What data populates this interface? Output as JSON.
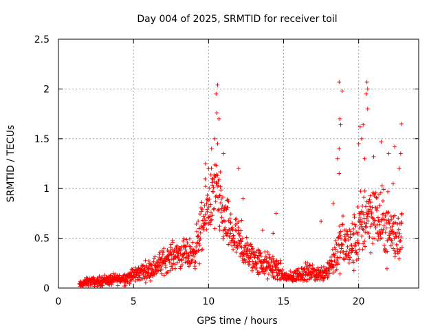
{
  "chart_data": {
    "type": "scatter",
    "title": "Day 004 of 2025, SRMTID for receiver toil",
    "xlabel": "GPS time / hours",
    "ylabel": "SRMTID / TECUs",
    "xlim": [
      0,
      24
    ],
    "ylim": [
      0,
      2.5
    ],
    "xticks": [
      "0",
      "5",
      "10",
      "15",
      "20"
    ],
    "xtick_values": [
      0,
      5,
      10,
      15,
      20
    ],
    "yticks": [
      "0",
      "0.5",
      "1",
      "1.5",
      "2",
      "2.5"
    ],
    "ytick_values": [
      0,
      0.5,
      1,
      1.5,
      2,
      2.5
    ],
    "grid": true,
    "marker": "+",
    "color": "#ff0000",
    "series": [
      {
        "name": "SRMTID",
        "envelope_note": "approximate trend of the point cloud read from the chart",
        "x": [
          1.4,
          2.0,
          2.5,
          3.0,
          3.5,
          4.0,
          4.5,
          5.0,
          5.5,
          6.0,
          6.5,
          7.0,
          7.5,
          8.0,
          8.5,
          9.0,
          9.5,
          10.0,
          10.5,
          11.0,
          11.5,
          12.0,
          12.5,
          13.0,
          13.5,
          14.0,
          14.5,
          15.0,
          15.5,
          16.0,
          16.5,
          17.0,
          17.5,
          18.0,
          18.5,
          19.0,
          19.5,
          20.0,
          20.5,
          21.0,
          21.5,
          22.0,
          22.5,
          22.9
        ],
        "y": [
          0.03,
          0.07,
          0.06,
          0.08,
          0.08,
          0.09,
          0.1,
          0.13,
          0.16,
          0.18,
          0.22,
          0.27,
          0.32,
          0.35,
          0.33,
          0.35,
          0.55,
          0.85,
          0.95,
          0.7,
          0.55,
          0.45,
          0.35,
          0.3,
          0.25,
          0.22,
          0.2,
          0.12,
          0.1,
          0.14,
          0.16,
          0.15,
          0.14,
          0.2,
          0.35,
          0.45,
          0.4,
          0.55,
          0.75,
          0.75,
          0.65,
          0.6,
          0.5,
          0.6
        ],
        "spread": [
          0.03,
          0.04,
          0.04,
          0.05,
          0.05,
          0.05,
          0.06,
          0.07,
          0.08,
          0.09,
          0.1,
          0.12,
          0.12,
          0.13,
          0.13,
          0.15,
          0.25,
          0.3,
          0.35,
          0.25,
          0.22,
          0.2,
          0.15,
          0.14,
          0.13,
          0.12,
          0.12,
          0.06,
          0.05,
          0.07,
          0.08,
          0.07,
          0.07,
          0.1,
          0.2,
          0.25,
          0.25,
          0.3,
          0.35,
          0.3,
          0.3,
          0.3,
          0.25,
          0.25
        ],
        "outliers": [
          [
            10.6,
            2.04
          ],
          [
            10.5,
            1.95
          ],
          [
            10.55,
            1.76
          ],
          [
            10.7,
            1.7
          ],
          [
            10.4,
            1.5
          ],
          [
            10.6,
            1.45
          ],
          [
            10.2,
            1.4
          ],
          [
            9.8,
            1.25
          ],
          [
            10.0,
            1.2
          ],
          [
            11.0,
            1.35
          ],
          [
            12.0,
            1.2
          ],
          [
            12.3,
            0.9
          ],
          [
            18.7,
            2.07
          ],
          [
            18.9,
            1.98
          ],
          [
            18.75,
            1.7
          ],
          [
            18.8,
            1.64
          ],
          [
            18.7,
            1.4
          ],
          [
            18.6,
            1.3
          ],
          [
            18.7,
            1.15
          ],
          [
            20.55,
            2.07
          ],
          [
            20.6,
            2.0
          ],
          [
            20.5,
            1.95
          ],
          [
            20.6,
            1.8
          ],
          [
            20.3,
            1.64
          ],
          [
            20.1,
            1.62
          ],
          [
            20.2,
            1.5
          ],
          [
            20.0,
            1.45
          ],
          [
            20.4,
            1.3
          ],
          [
            21.0,
            1.32
          ],
          [
            21.5,
            1.47
          ],
          [
            22.0,
            1.35
          ],
          [
            22.4,
            1.42
          ],
          [
            22.85,
            1.65
          ],
          [
            22.8,
            1.35
          ],
          [
            22.7,
            1.2
          ],
          [
            22.3,
            1.05
          ],
          [
            14.5,
            0.75
          ],
          [
            14.3,
            0.55
          ],
          [
            12.2,
            0.68
          ],
          [
            13.6,
            0.58
          ],
          [
            17.5,
            0.67
          ],
          [
            18.3,
            0.85
          ]
        ]
      }
    ]
  }
}
